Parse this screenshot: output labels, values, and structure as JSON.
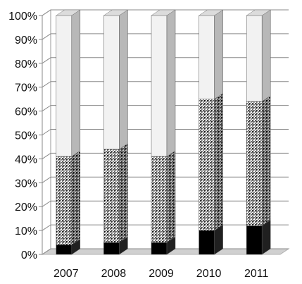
{
  "chart_data": {
    "type": "bar",
    "stacked": "100%",
    "three_d": true,
    "categories": [
      "2007",
      "2008",
      "2009",
      "2010",
      "2011"
    ],
    "series": [
      {
        "values": [
          4,
          5,
          5,
          10,
          12
        ],
        "color": "#000000",
        "pattern": "solid"
      },
      {
        "values": [
          37,
          39,
          36,
          55,
          52
        ],
        "color": "#555555",
        "pattern": "dense-dots"
      },
      {
        "values": [
          59,
          56,
          59,
          35,
          36
        ],
        "color": "#f2f2f2",
        "pattern": "light"
      }
    ],
    "y_ticks": [
      "0%",
      "10%",
      "20%",
      "30%",
      "40%",
      "50%",
      "60%",
      "70%",
      "80%",
      "90%",
      "100%"
    ],
    "ylim": [
      0,
      100
    ],
    "grid": true,
    "legend": "none",
    "title": "",
    "xlabel": "",
    "ylabel": ""
  }
}
